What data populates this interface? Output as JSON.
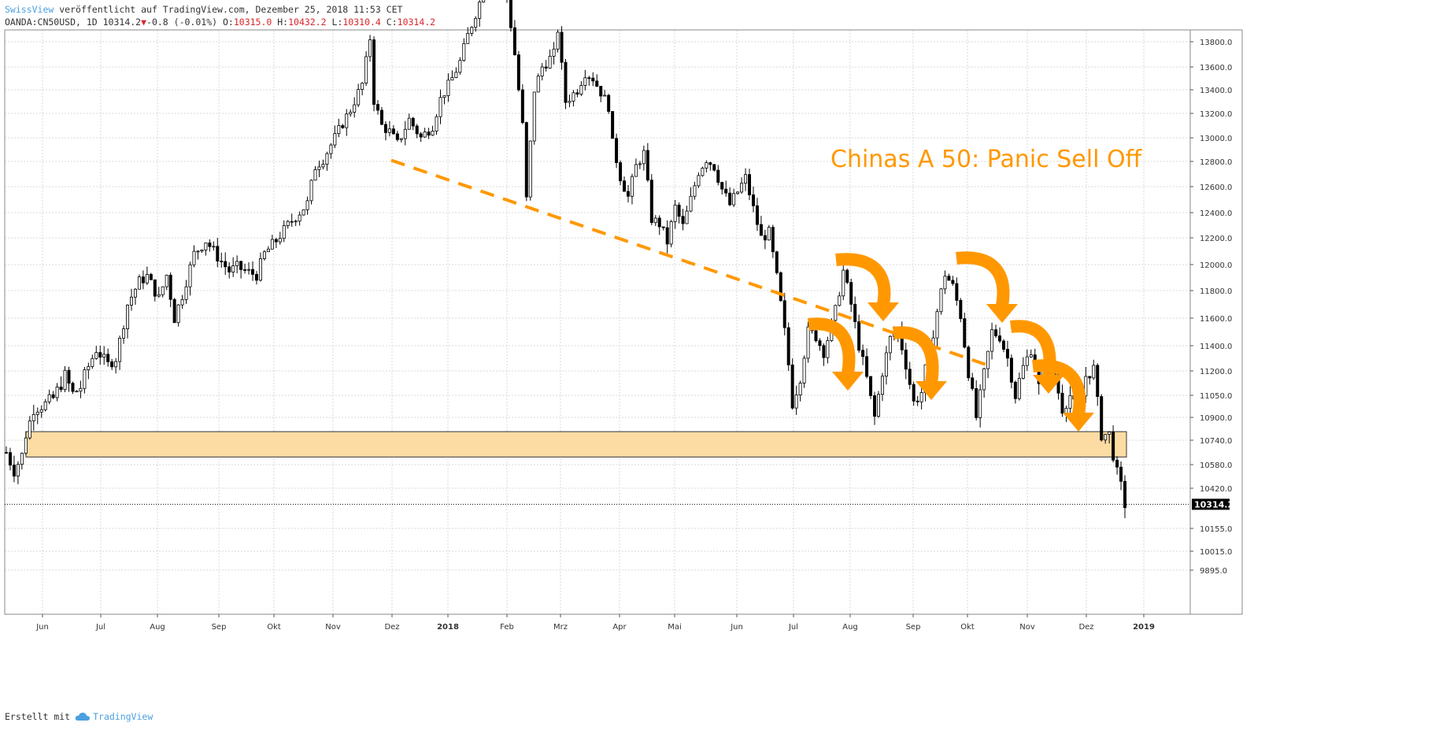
{
  "header": {
    "author": "SwissView",
    "published": "veröffentlicht auf TradingView.com, Dezember 25, 2018 11:53 CET",
    "symbol_info": "OANDA:CN50USD, 1D 10314.2",
    "change": "-0.8 (-0.01%)",
    "o_label": "O:",
    "o_value": "10315.0",
    "h_label": "H:",
    "h_value": "10432.2",
    "l_label": "L:",
    "l_value": "10310.4",
    "c_label": "C:",
    "c_value": "10314.2"
  },
  "footer": {
    "created_with": "Erstellt mit",
    "brand": "TradingView",
    "brand_icon": "tradingview-cloud-icon"
  },
  "colors": {
    "candle": "#000000",
    "annotation": "#ff9800",
    "zone_fill": "#fddca3",
    "grid": "#d9d9d9",
    "author_link": "#4a9fe0",
    "down_red": "#d9262b"
  },
  "chart_data": {
    "type": "candlestick",
    "annotation_title": "Chinas A 50: Panic Sell Off",
    "y_ticks": [
      13800.0,
      13600.0,
      13400.0,
      13200.0,
      13000.0,
      12800.0,
      12600.0,
      12400.0,
      12200.0,
      12000.0,
      11800.0,
      11600.0,
      11400.0,
      11200.0,
      11050.0,
      10900.0,
      10740.0,
      10580.0,
      10420.0,
      10155.0,
      10015.0,
      9895.0
    ],
    "y_tick_labels": [
      "13800.0",
      "13600.0",
      "13400.0",
      "13200.0",
      "13000.0",
      "12800.0",
      "12600.0",
      "12400.0",
      "12200.0",
      "12000.0",
      "11800.0",
      "11600.0",
      "11400.0",
      "11200.0",
      "11050.0",
      "10900.0",
      "10740.0",
      "10580.0",
      "10420.0",
      "10155.0",
      "10015.0",
      "9895.0"
    ],
    "x_tick_labels": [
      "Jun",
      "Jul",
      "Aug",
      "Sep",
      "Okt",
      "Nov",
      "Dez",
      "2018",
      "Feb",
      "Mrz",
      "Apr",
      "Mai",
      "Jun",
      "Jul",
      "Aug",
      "Sep",
      "Okt",
      "Nov",
      "Dez",
      "2019"
    ],
    "x_tick_bold": [
      false,
      false,
      false,
      false,
      false,
      false,
      false,
      true,
      false,
      false,
      false,
      false,
      false,
      false,
      false,
      false,
      false,
      false,
      false,
      true
    ],
    "last_price": "10314.2",
    "grid": true,
    "price_path": [
      [
        0,
        10660
      ],
      [
        2,
        10540
      ],
      [
        4,
        10640
      ],
      [
        5,
        10780
      ],
      [
        7,
        10960
      ],
      [
        10,
        10990
      ],
      [
        12,
        11030
      ],
      [
        15,
        11170
      ],
      [
        17,
        11060
      ],
      [
        19,
        11100
      ],
      [
        23,
        11370
      ],
      [
        26,
        11250
      ],
      [
        28,
        11300
      ],
      [
        31,
        11700
      ],
      [
        34,
        11870
      ],
      [
        36,
        11910
      ],
      [
        39,
        11740
      ],
      [
        41,
        11920
      ],
      [
        43,
        11600
      ],
      [
        45,
        11770
      ],
      [
        48,
        12080
      ],
      [
        51,
        12180
      ],
      [
        54,
        12060
      ],
      [
        57,
        11950
      ],
      [
        59,
        11980
      ],
      [
        62,
        11940
      ],
      [
        64,
        11920
      ],
      [
        66,
        12080
      ],
      [
        69,
        12180
      ],
      [
        72,
        12300
      ],
      [
        74,
        12370
      ],
      [
        77,
        12470
      ],
      [
        79,
        12760
      ],
      [
        81,
        12820
      ],
      [
        84,
        13000
      ],
      [
        86,
        13120
      ],
      [
        88,
        13230
      ],
      [
        91,
        13450
      ],
      [
        93,
        13830
      ],
      [
        94,
        13310
      ],
      [
        96,
        13100
      ],
      [
        98,
        13050
      ],
      [
        100,
        12950
      ],
      [
        103,
        13150
      ],
      [
        106,
        13000
      ],
      [
        109,
        13100
      ],
      [
        111,
        13320
      ],
      [
        114,
        13500
      ],
      [
        116,
        13640
      ],
      [
        118,
        13850
      ],
      [
        122,
        14200
      ],
      [
        127,
        14400
      ],
      [
        130,
        13700
      ],
      [
        132,
        13100
      ],
      [
        133,
        12500
      ],
      [
        135,
        13400
      ],
      [
        137,
        13600
      ],
      [
        140,
        13700
      ],
      [
        141,
        13900
      ],
      [
        143,
        13300
      ],
      [
        146,
        13400
      ],
      [
        148,
        13550
      ],
      [
        150,
        13500
      ],
      [
        152,
        13380
      ],
      [
        154,
        13260
      ],
      [
        155,
        12950
      ],
      [
        157,
        12680
      ],
      [
        159,
        12520
      ],
      [
        161,
        12760
      ],
      [
        163,
        12870
      ],
      [
        165,
        12350
      ],
      [
        167,
        12310
      ],
      [
        169,
        12170
      ],
      [
        171,
        12440
      ],
      [
        173,
        12290
      ],
      [
        175,
        12500
      ],
      [
        177,
        12720
      ],
      [
        179,
        12820
      ],
      [
        181,
        12760
      ],
      [
        183,
        12580
      ],
      [
        185,
        12460
      ],
      [
        187,
        12560
      ],
      [
        189,
        12670
      ],
      [
        191,
        12430
      ],
      [
        193,
        12200
      ],
      [
        195,
        12240
      ],
      [
        197,
        11900
      ],
      [
        199,
        11500
      ],
      [
        201,
        11000
      ],
      [
        203,
        11170
      ],
      [
        205,
        11500
      ],
      [
        207,
        11470
      ],
      [
        209,
        11350
      ],
      [
        212,
        11650
      ],
      [
        214,
        11950
      ],
      [
        216,
        11700
      ],
      [
        218,
        11400
      ],
      [
        220,
        11150
      ],
      [
        222,
        10900
      ],
      [
        224,
        11200
      ],
      [
        226,
        11450
      ],
      [
        228,
        11520
      ],
      [
        230,
        11250
      ],
      [
        232,
        11000
      ],
      [
        234,
        11070
      ],
      [
        236,
        11350
      ],
      [
        238,
        11650
      ],
      [
        240,
        11930
      ],
      [
        242,
        11830
      ],
      [
        244,
        11620
      ],
      [
        246,
        11200
      ],
      [
        248,
        10900
      ],
      [
        250,
        11180
      ],
      [
        252,
        11500
      ],
      [
        254,
        11470
      ],
      [
        256,
        11300
      ],
      [
        258,
        11050
      ],
      [
        260,
        11230
      ],
      [
        262,
        11370
      ],
      [
        264,
        11100
      ],
      [
        266,
        11300
      ],
      [
        268,
        11180
      ],
      [
        270,
        10960
      ],
      [
        272,
        11050
      ],
      [
        274,
        10920
      ],
      [
        276,
        11170
      ],
      [
        278,
        11220
      ],
      [
        280,
        10780
      ],
      [
        282,
        10780
      ],
      [
        284,
        10520
      ],
      [
        285,
        10430
      ],
      [
        286,
        10314
      ]
    ],
    "support_zone": {
      "low": 10630,
      "high": 10800,
      "label": ""
    },
    "trend_line": {
      "from_price": 12810,
      "to_price": 11230
    }
  }
}
